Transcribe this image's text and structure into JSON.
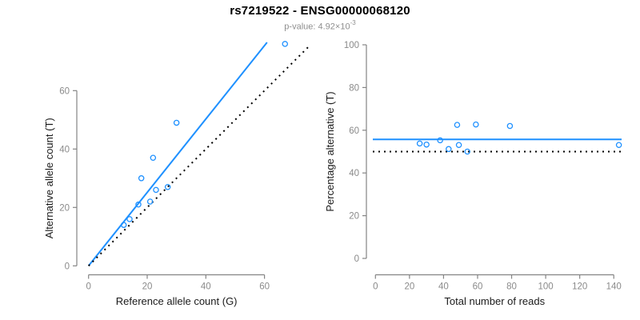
{
  "header": {
    "title": "rs7219522 - ENSG00000068120",
    "pvalue_base": "p-value: 4.92×10",
    "pvalue_exponent": "-3"
  },
  "chart_data": [
    {
      "type": "scatter",
      "panel": "left",
      "xlabel": "Reference allele count (G)",
      "ylabel": "Alternative allele count (T)",
      "xticks": [
        0,
        20,
        40,
        60
      ],
      "yticks": [
        0,
        20,
        40,
        60
      ],
      "xlim": [
        0,
        75
      ],
      "ylim": [
        0,
        77
      ],
      "grid": false,
      "legend": "none",
      "point_color": "#1E90FF",
      "points": [
        [
          12,
          14
        ],
        [
          14,
          16
        ],
        [
          17,
          21
        ],
        [
          18,
          30
        ],
        [
          21,
          22
        ],
        [
          22,
          37
        ],
        [
          23,
          26
        ],
        [
          27,
          27
        ],
        [
          30,
          49
        ],
        [
          67,
          76
        ]
      ],
      "lines": [
        {
          "name": "fitted-line",
          "style": "solid",
          "color": "#1E90FF",
          "slope": 1.257,
          "intercept": 0
        },
        {
          "name": "identity-line",
          "style": "dotted",
          "color": "#000000",
          "slope": 1,
          "intercept": 0
        }
      ]
    },
    {
      "type": "scatter",
      "panel": "right",
      "xlabel": "Total number of reads",
      "ylabel": "Percentage alternative (T)",
      "xticks": [
        0,
        20,
        40,
        60,
        80,
        100,
        120,
        140
      ],
      "yticks": [
        0,
        20,
        40,
        60,
        80,
        100
      ],
      "xlim": [
        0,
        145
      ],
      "ylim": [
        0,
        100
      ],
      "grid": false,
      "legend": "none",
      "point_color": "#1E90FF",
      "points": [
        [
          26,
          53.8
        ],
        [
          30,
          53.3
        ],
        [
          38,
          55.3
        ],
        [
          43,
          51.2
        ],
        [
          48,
          62.5
        ],
        [
          49,
          53.1
        ],
        [
          54,
          50
        ],
        [
          59,
          62.7
        ],
        [
          79,
          62
        ],
        [
          143,
          53.1
        ]
      ],
      "lines": [
        {
          "name": "fitted-line",
          "style": "solid",
          "color": "#1E90FF",
          "y": 55.7
        },
        {
          "name": "null-line",
          "style": "dotted",
          "color": "#000000",
          "y": 50
        }
      ]
    }
  ]
}
